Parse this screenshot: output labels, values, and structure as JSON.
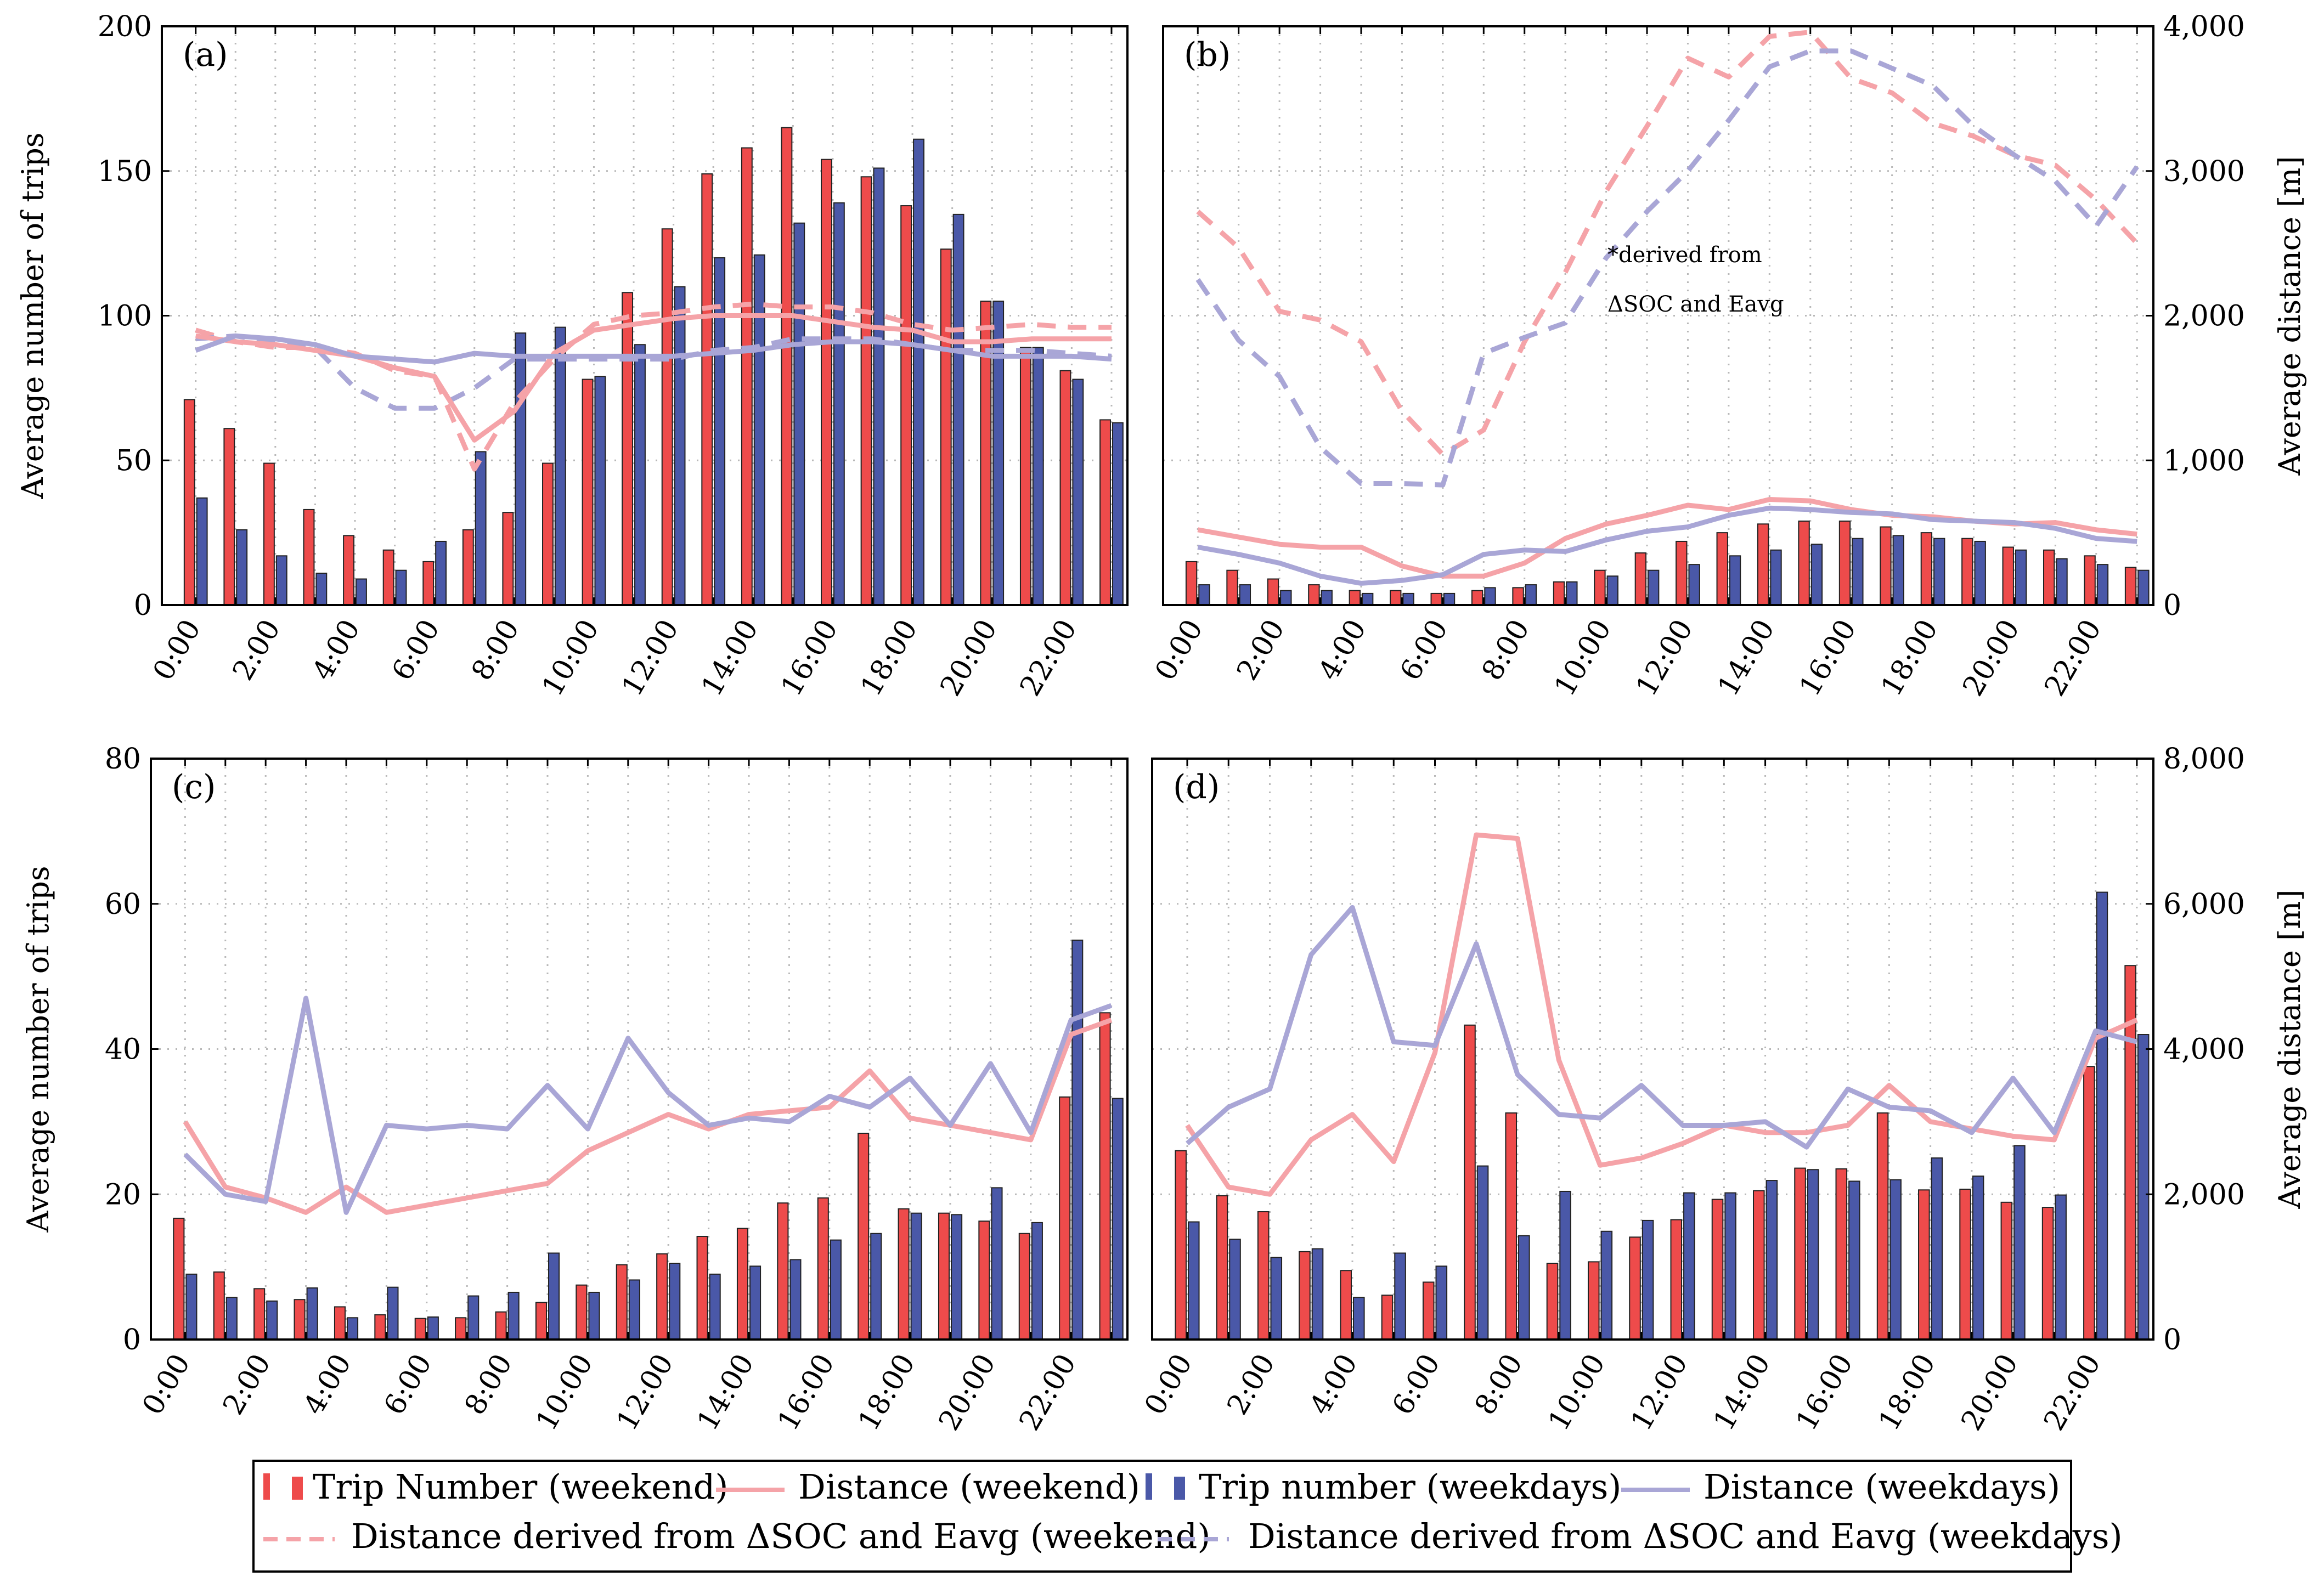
{
  "colors": {
    "trip_weekend": "#ee4b4b",
    "trip_weekdays": "#4a58a8",
    "dist_weekend": "#f5a3a8",
    "dist_weekdays": "#a9a6d6",
    "grid": "#b8b8b8"
  },
  "legend": {
    "trip_weekend": "Trip Number (weekend)",
    "dist_weekend": "Distance (weekend)",
    "trip_weekdays": "Trip number (weekdays)",
    "dist_weekdays": "Distance (weekdays)",
    "derived_weekend": "Distance derived from ΔSOC and Eavg (weekend)",
    "derived_weekdays": "Distance derived from ΔSOC and Eavg (weekdays)"
  },
  "chart_data": [
    {
      "panel": "(a)",
      "type": "bar+line",
      "ylabel_left": "Average number of trips",
      "ylim_left": [
        0,
        200
      ],
      "yticks_left": [
        "0",
        "50",
        "100",
        "150",
        "200"
      ],
      "xtick_labels": [
        "0:00",
        "2:00",
        "4:00",
        "6:00",
        "8:00",
        "10:00",
        "12:00",
        "14:00",
        "16:00",
        "18:00",
        "20:00",
        "22:00"
      ],
      "hours": [
        0,
        1,
        2,
        3,
        4,
        5,
        6,
        7,
        8,
        9,
        10,
        11,
        12,
        13,
        14,
        15,
        16,
        17,
        18,
        19,
        20,
        21,
        22,
        23
      ],
      "trip_weekend": [
        71,
        61,
        49,
        33,
        24,
        19,
        15,
        26,
        32,
        49,
        78,
        108,
        130,
        149,
        158,
        165,
        154,
        148,
        138,
        123,
        105,
        89,
        81,
        64
      ],
      "trip_weekdays": [
        37,
        26,
        17,
        11,
        9,
        12,
        22,
        53,
        94,
        96,
        79,
        90,
        110,
        120,
        121,
        132,
        139,
        151,
        161,
        135,
        105,
        89,
        78,
        63
      ],
      "dist_weekend": [
        93,
        91,
        90,
        88,
        86,
        82,
        79,
        57,
        67,
        87,
        95,
        97,
        99,
        100,
        100,
        100,
        98,
        96,
        95,
        91,
        91,
        92,
        92,
        92
      ],
      "dist_weekdays": [
        88,
        93,
        92,
        90,
        86,
        85,
        84,
        87,
        86,
        86,
        86,
        86,
        86,
        87,
        88,
        90,
        91,
        91,
        90,
        88,
        86,
        86,
        86,
        85
      ],
      "derived_weekend": [
        95,
        91,
        89,
        89,
        87,
        81,
        79,
        47,
        70,
        85,
        97,
        100,
        101,
        103,
        104,
        103,
        103,
        101,
        97,
        95,
        96,
        97,
        96,
        96
      ],
      "derived_weekdays": [
        92,
        93,
        91,
        89,
        75,
        68,
        68,
        75,
        85,
        85,
        85,
        85,
        85,
        88,
        89,
        92,
        92,
        92,
        90,
        88,
        88,
        88,
        87,
        86
      ]
    },
    {
      "panel": "(b)",
      "type": "bar+line",
      "ylabel_right": "Average distance [m]",
      "ylim_right": [
        0,
        4000
      ],
      "yticks_right": [
        "0",
        "1,000",
        "2,000",
        "3,000",
        "4,000"
      ],
      "xtick_labels": [
        "0:00",
        "2:00",
        "4:00",
        "6:00",
        "8:00",
        "10:00",
        "12:00",
        "14:00",
        "16:00",
        "18:00",
        "20:00",
        "22:00"
      ],
      "hours": [
        0,
        1,
        2,
        3,
        4,
        5,
        6,
        7,
        8,
        9,
        10,
        11,
        12,
        13,
        14,
        15,
        16,
        17,
        18,
        19,
        20,
        21,
        22,
        23
      ],
      "trip_weekend": [
        15,
        12,
        9,
        7,
        5,
        5,
        4,
        5,
        6,
        8,
        12,
        18,
        22,
        25,
        28,
        29,
        29,
        27,
        25,
        23,
        20,
        19,
        17,
        13
      ],
      "trip_weekdays": [
        7,
        7,
        5,
        5,
        4,
        4,
        4,
        6,
        7,
        8,
        10,
        12,
        14,
        17,
        19,
        21,
        23,
        24,
        23,
        22,
        19,
        16,
        14,
        12
      ],
      "dist_weekend": [
        520,
        470,
        420,
        400,
        400,
        270,
        200,
        200,
        290,
        460,
        560,
        620,
        690,
        660,
        730,
        720,
        660,
        620,
        610,
        580,
        560,
        570,
        520,
        490
      ],
      "dist_weekdays": [
        400,
        350,
        290,
        200,
        150,
        170,
        210,
        350,
        380,
        370,
        450,
        510,
        540,
        620,
        670,
        660,
        640,
        630,
        590,
        580,
        570,
        530,
        460,
        440
      ],
      "derived_weekend": [
        2720,
        2470,
        2030,
        1970,
        1820,
        1340,
        1040,
        1210,
        1820,
        2300,
        2860,
        3310,
        3780,
        3650,
        3930,
        3960,
        3640,
        3540,
        3330,
        3240,
        3110,
        3040,
        2800,
        2500
      ],
      "derived_weekdays": [
        2250,
        1830,
        1580,
        1090,
        840,
        840,
        830,
        1740,
        1850,
        1950,
        2400,
        2720,
        3000,
        3350,
        3720,
        3830,
        3830,
        3710,
        3590,
        3310,
        3110,
        2930,
        2620,
        3030
      ],
      "annotation_line1": "*derived from",
      "annotation_line2": "ΔSOC and Eavg"
    },
    {
      "panel": "(c)",
      "type": "bar+line",
      "ylabel_left": "Average number of trips",
      "ylim_left": [
        0,
        80
      ],
      "yticks_left": [
        "0",
        "20",
        "40",
        "60",
        "80"
      ],
      "xtick_labels": [
        "0:00",
        "2:00",
        "4:00",
        "6:00",
        "8:00",
        "10:00",
        "12:00",
        "14:00",
        "16:00",
        "18:00",
        "20:00",
        "22:00"
      ],
      "hours": [
        0,
        1,
        2,
        3,
        4,
        5,
        6,
        7,
        8,
        9,
        10,
        11,
        12,
        13,
        14,
        15,
        16,
        17,
        18,
        19,
        20,
        21,
        22,
        23
      ],
      "trip_weekend": [
        16.7,
        9.3,
        7,
        5.5,
        4.5,
        3.4,
        2.9,
        3,
        3.8,
        5.1,
        7.5,
        10.3,
        11.8,
        14.2,
        15.3,
        18.8,
        19.5,
        28.4,
        18,
        17.4,
        16.3,
        14.6,
        33.4,
        45
      ],
      "trip_weekdays": [
        9,
        5.8,
        5.3,
        7.1,
        3,
        7.2,
        3.1,
        6,
        6.5,
        11.9,
        6.5,
        8.2,
        10.5,
        9,
        10.1,
        11,
        13.7,
        14.6,
        17.4,
        17.2,
        20.9,
        16.1,
        55,
        33.2
      ],
      "dist_weekend": [
        30,
        21,
        19.5,
        17.5,
        21,
        17.5,
        18.5,
        19.5,
        20.5,
        21.5,
        26,
        28.5,
        31,
        29,
        31,
        31.5,
        32,
        37,
        30.5,
        29.5,
        28.5,
        27.5,
        42,
        44
      ],
      "dist_weekdays": [
        25.5,
        20,
        19,
        47,
        17.5,
        29.5,
        29,
        29.5,
        29,
        35,
        29,
        41.5,
        34,
        29.5,
        30.5,
        30,
        33.5,
        32,
        36,
        29.5,
        38,
        28.5,
        44,
        46
      ]
    },
    {
      "panel": "(d)",
      "type": "bar+line",
      "ylabel_right": "Average distance [m]",
      "ylim_right": [
        0,
        8000
      ],
      "yticks_right": [
        "0",
        "2,000",
        "4,000",
        "6,000",
        "8,000"
      ],
      "xtick_labels": [
        "0:00",
        "2:00",
        "4:00",
        "6:00",
        "8:00",
        "10:00",
        "12:00",
        "14:00",
        "16:00",
        "18:00",
        "20:00",
        "22:00"
      ],
      "hours": [
        0,
        1,
        2,
        3,
        4,
        5,
        6,
        7,
        8,
        9,
        10,
        11,
        12,
        13,
        14,
        15,
        16,
        17,
        18,
        19,
        20,
        21,
        22,
        23
      ],
      "trip_weekend": [
        26,
        19.8,
        17.6,
        12.1,
        9.5,
        6.1,
        7.9,
        43.3,
        31.2,
        10.5,
        10.7,
        14.1,
        16.5,
        19.3,
        20.5,
        23.6,
        23.5,
        31.2,
        20.6,
        20.7,
        18.9,
        18.2,
        37.6,
        51.5
      ],
      "trip_weekdays": [
        16.2,
        13.8,
        11.3,
        12.5,
        5.8,
        11.9,
        10.1,
        23.9,
        14.3,
        20.4,
        14.9,
        16.4,
        20.2,
        20.2,
        21.9,
        23.4,
        21.8,
        22,
        25,
        22.5,
        26.7,
        19.9,
        61.6,
        42
      ],
      "dist_weekend": [
        2950,
        2100,
        2000,
        2750,
        3100,
        2450,
        3950,
        6950,
        6900,
        3850,
        2400,
        2500,
        2700,
        2950,
        2850,
        2850,
        2950,
        3500,
        3000,
        2900,
        2800,
        2750,
        4150,
        4400
      ],
      "dist_weekdays": [
        2700,
        3200,
        3450,
        5300,
        5950,
        4100,
        4050,
        5450,
        3650,
        3100,
        3050,
        3500,
        2950,
        2950,
        3000,
        2650,
        3450,
        3200,
        3150,
        2850,
        3600,
        2850,
        4250,
        4100
      ]
    }
  ]
}
